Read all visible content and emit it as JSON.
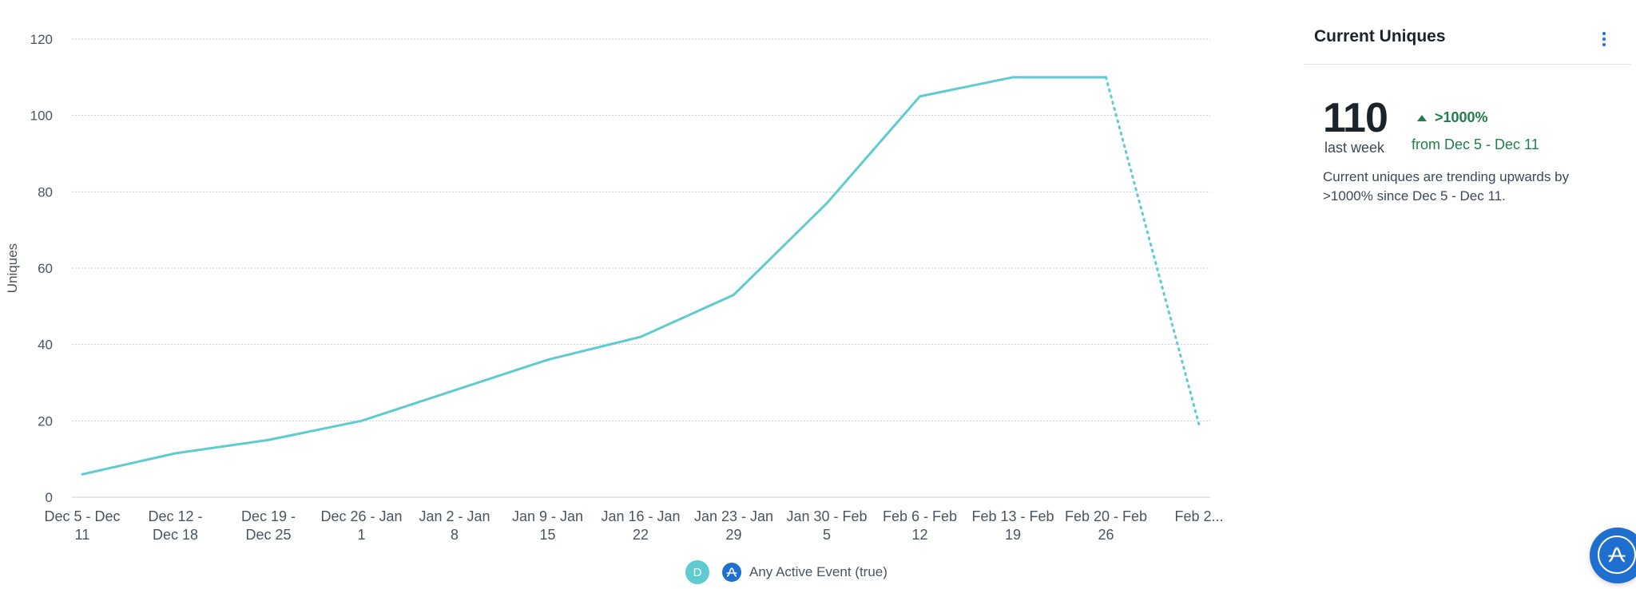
{
  "chart_data": {
    "type": "line",
    "ylabel": "Uniques",
    "ylim": [
      0,
      120
    ],
    "yticks": [
      0,
      20,
      40,
      60,
      80,
      100,
      120
    ],
    "grid": true,
    "categories": [
      [
        "Dec 5 - Dec",
        "11"
      ],
      [
        "Dec 12 -",
        "Dec 18"
      ],
      [
        "Dec 19 -",
        "Dec 25"
      ],
      [
        "Dec 26 - Jan",
        "1"
      ],
      [
        "Jan 2 - Jan",
        "8"
      ],
      [
        "Jan 9 - Jan",
        "15"
      ],
      [
        "Jan 16 - Jan",
        "22"
      ],
      [
        "Jan 23 - Jan",
        "29"
      ],
      [
        "Jan 30 - Feb",
        "5"
      ],
      [
        "Feb 6 - Feb",
        "12"
      ],
      [
        "Feb 13 - Feb",
        "19"
      ],
      [
        "Feb 20 - Feb",
        "26"
      ],
      [
        "Feb 2...",
        ""
      ]
    ],
    "series": [
      {
        "name": "Any Active Event (true)",
        "color": "#5ecbd0",
        "values": [
          6,
          11.5,
          15,
          20,
          28,
          36,
          42,
          53,
          77,
          105,
          110,
          110,
          19
        ],
        "incomplete_last_point": true
      }
    ]
  },
  "legend": {
    "badge_letter": "D",
    "event_label": "Any Active Event (true)"
  },
  "panel": {
    "title": "Current Uniques",
    "value": "110",
    "period_label": "last week",
    "change": ">1000%",
    "compare_label": "from Dec 5 - Dec 11",
    "summary": "Current uniques are trending upwards by >1000% since Dec 5 - Dec 11."
  },
  "colors": {
    "line": "#5ecbd0",
    "positive": "#1e7f4a",
    "accent": "#1f6fd1"
  },
  "icons": {
    "panel_menu": "kebab-menu-icon",
    "legend_event": "amplitude-logo-icon",
    "help_bubble": "amplitude-logo-icon"
  }
}
